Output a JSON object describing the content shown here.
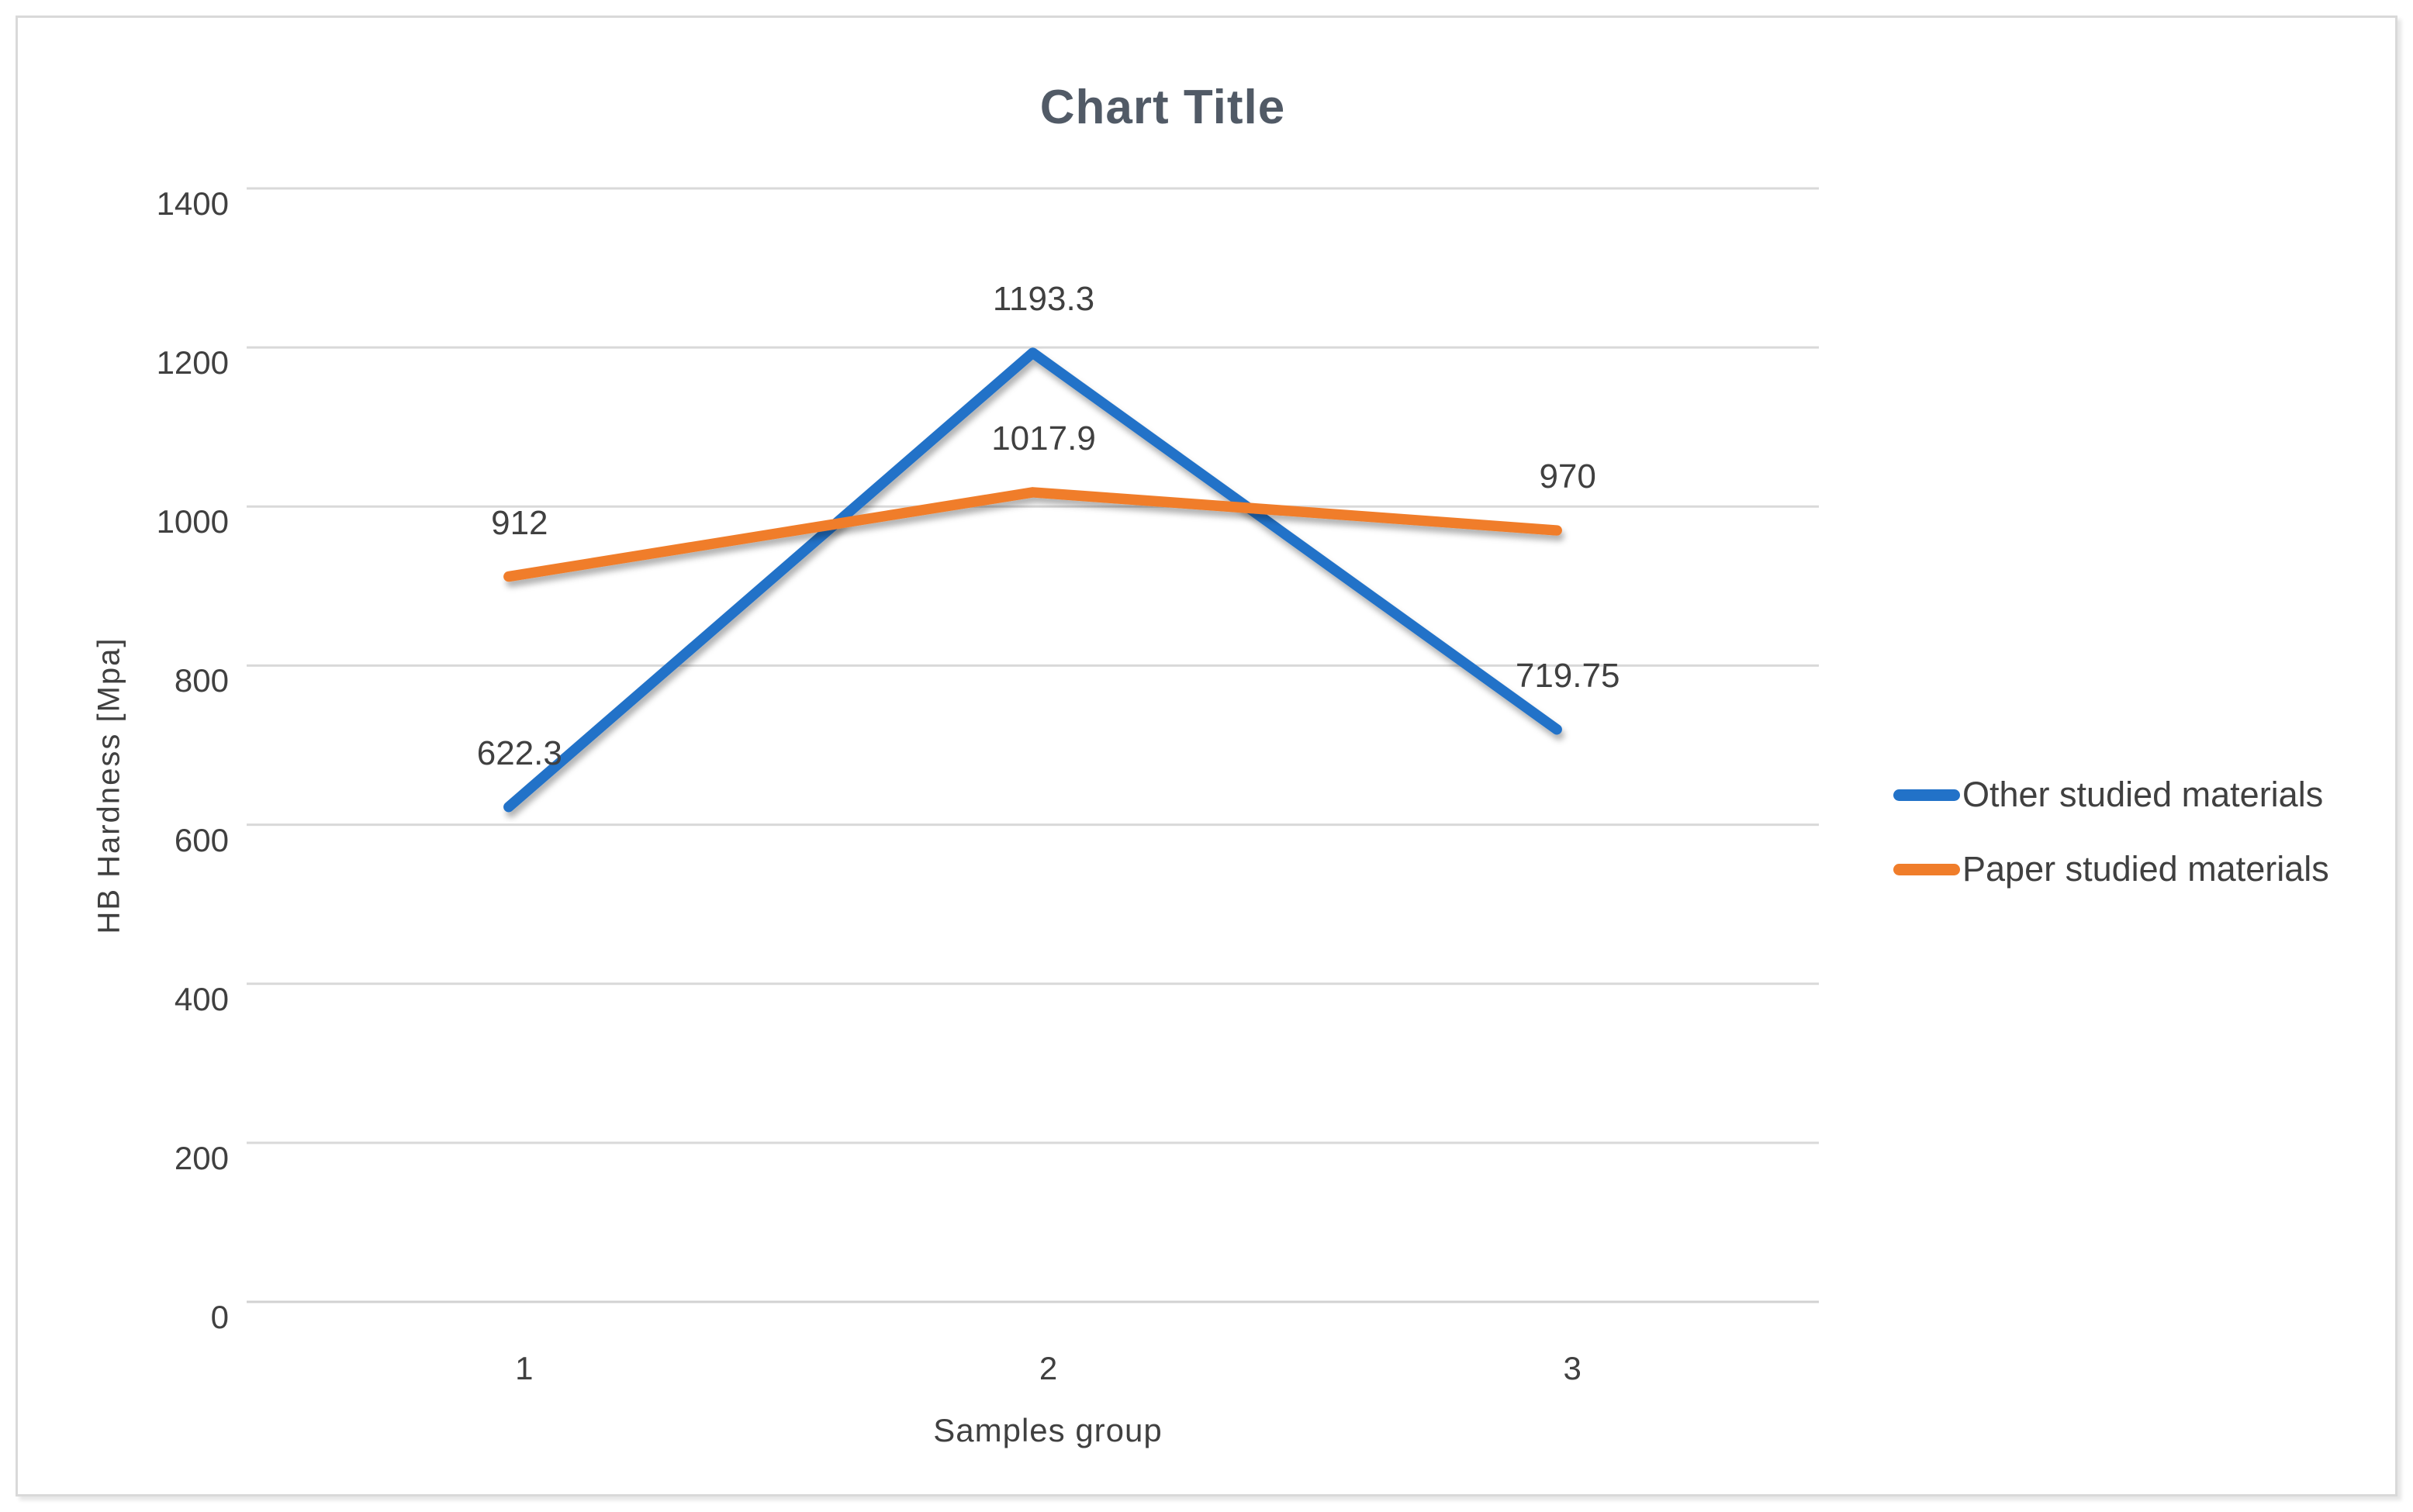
{
  "chart_data": {
    "type": "line",
    "title": "Chart Title",
    "xlabel": "Samples group",
    "ylabel": "HB Hardness [Mpa]",
    "categories": [
      "1",
      "2",
      "3"
    ],
    "series": [
      {
        "name": "Other studied materials",
        "color": "#2272c8",
        "values": [
          622.3,
          1193.3,
          719.75
        ],
        "labels": [
          "622.3",
          "1193.3",
          "719.75"
        ]
      },
      {
        "name": "Paper studied materials",
        "color": "#f07d2a",
        "values": [
          912,
          1017.9,
          970
        ],
        "labels": [
          "912",
          "1017.9",
          "970"
        ]
      }
    ],
    "ylim": [
      0,
      1400
    ],
    "ytick_step": 200,
    "grid": "horizontal-only",
    "legend_position": "right",
    "data_labels": "above-points"
  },
  "colors": {
    "grid": "#d9d9d9",
    "axis_line": "#d2d2d2",
    "text": "#404040",
    "title": "#515a66"
  }
}
